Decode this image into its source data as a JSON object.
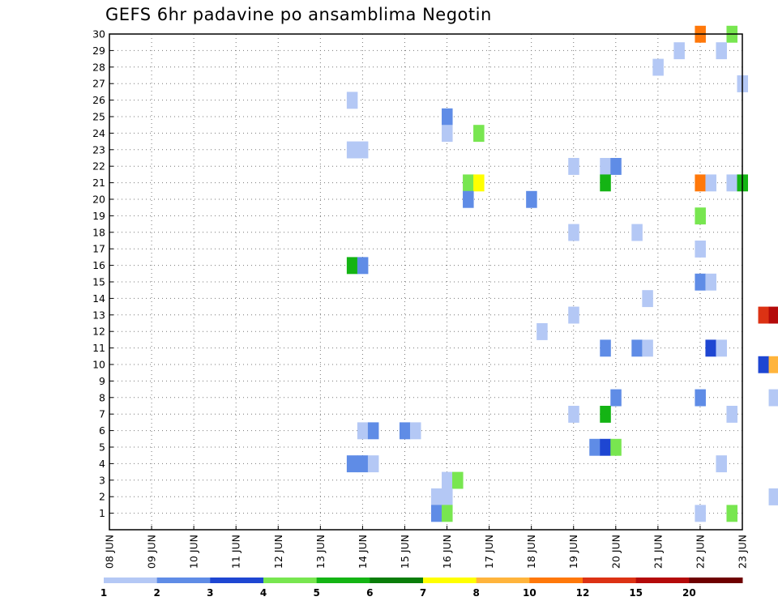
{
  "chart_data": {
    "type": "heatmap",
    "title": "GEFS 6hr padavine po ansamblima Negotin",
    "xlabel": "",
    "ylabel": "",
    "x_tick_labels": [
      "08 JUN",
      "09 JUN",
      "10 JUN",
      "11 JUN",
      "12 JUN",
      "13 JUN",
      "14 JUN",
      "15 JUN",
      "16 JUN",
      "17 JUN",
      "18 JUN",
      "19 JUN",
      "20 JUN",
      "21 JUN",
      "22 JUN",
      "23 JUN"
    ],
    "x_range_days": [
      0,
      15
    ],
    "y_tick_labels": [
      1,
      2,
      3,
      4,
      5,
      6,
      7,
      8,
      9,
      10,
      11,
      12,
      13,
      14,
      15,
      16,
      17,
      18,
      19,
      20,
      21,
      22,
      23,
      24,
      25,
      26,
      27,
      28,
      29,
      30
    ],
    "y_range": [
      0,
      30
    ],
    "grid": true,
    "legend_placement": "bottom",
    "legend": {
      "bounds": [
        1,
        2,
        3,
        4,
        5,
        6,
        7,
        8,
        10,
        12,
        15,
        20
      ],
      "colors": [
        "#b4c8f5",
        "#5f8ce6",
        "#1e46d2",
        "#78e650",
        "#14b414",
        "#0a7d0a",
        "#ffff00",
        "#ffb43c",
        "#ff780a",
        "#dc3214",
        "#b40a0a",
        "#6e0000"
      ]
    },
    "cells_note": "each cell: [day_offset_from_08_JUN, member, color_class] where color_class indexes legend.colors",
    "cells": [
      [
        14.0,
        30,
        8
      ],
      [
        14.75,
        30,
        3
      ],
      [
        13.5,
        29,
        0
      ],
      [
        14.5,
        29,
        0
      ],
      [
        13.0,
        28,
        0
      ],
      [
        15.0,
        27,
        0
      ],
      [
        5.75,
        26,
        0
      ],
      [
        8.0,
        25,
        1
      ],
      [
        8.0,
        24,
        0
      ],
      [
        8.75,
        24,
        3
      ],
      [
        5.75,
        23,
        0
      ],
      [
        6.0,
        23,
        0
      ],
      [
        11.0,
        22,
        0
      ],
      [
        11.75,
        22,
        0
      ],
      [
        12.0,
        22,
        1
      ],
      [
        8.5,
        21,
        3
      ],
      [
        8.75,
        21,
        6
      ],
      [
        11.75,
        21,
        4
      ],
      [
        14.0,
        21,
        8
      ],
      [
        14.25,
        21,
        0
      ],
      [
        14.75,
        21,
        0
      ],
      [
        15.0,
        21,
        4
      ],
      [
        8.5,
        20,
        1
      ],
      [
        10.0,
        20,
        1
      ],
      [
        14.0,
        19,
        3
      ],
      [
        11.0,
        18,
        0
      ],
      [
        12.5,
        18,
        0
      ],
      [
        14.0,
        17,
        0
      ],
      [
        5.75,
        16,
        4
      ],
      [
        6.0,
        16,
        1
      ],
      [
        14.0,
        15,
        1
      ],
      [
        14.25,
        15,
        0
      ],
      [
        12.75,
        14,
        0
      ],
      [
        11.0,
        13,
        0
      ],
      [
        15.5,
        13,
        9
      ],
      [
        15.75,
        13,
        10
      ],
      [
        10.25,
        12,
        0
      ],
      [
        11.75,
        11,
        1
      ],
      [
        12.5,
        11,
        1
      ],
      [
        12.75,
        11,
        0
      ],
      [
        14.25,
        11,
        2
      ],
      [
        14.5,
        11,
        0
      ],
      [
        15.5,
        10,
        2
      ],
      [
        15.75,
        10,
        7
      ],
      [
        12.0,
        8,
        1
      ],
      [
        14.0,
        8,
        1
      ],
      [
        15.75,
        8,
        0
      ],
      [
        11.0,
        7,
        0
      ],
      [
        11.75,
        7,
        4
      ],
      [
        14.75,
        7,
        0
      ],
      [
        6.0,
        6,
        0
      ],
      [
        6.25,
        6,
        1
      ],
      [
        7.0,
        6,
        1
      ],
      [
        7.25,
        6,
        0
      ],
      [
        11.5,
        5,
        1
      ],
      [
        11.75,
        5,
        2
      ],
      [
        12.0,
        5,
        3
      ],
      [
        5.75,
        4,
        1
      ],
      [
        6.0,
        4,
        1
      ],
      [
        6.25,
        4,
        0
      ],
      [
        14.5,
        4,
        0
      ],
      [
        8.0,
        3,
        0
      ],
      [
        8.25,
        3,
        3
      ],
      [
        7.75,
        2,
        0
      ],
      [
        8.0,
        2,
        0
      ],
      [
        15.75,
        2,
        0
      ],
      [
        7.75,
        1,
        1
      ],
      [
        8.0,
        1,
        3
      ],
      [
        14.0,
        1,
        0
      ],
      [
        14.75,
        1,
        3
      ]
    ]
  }
}
